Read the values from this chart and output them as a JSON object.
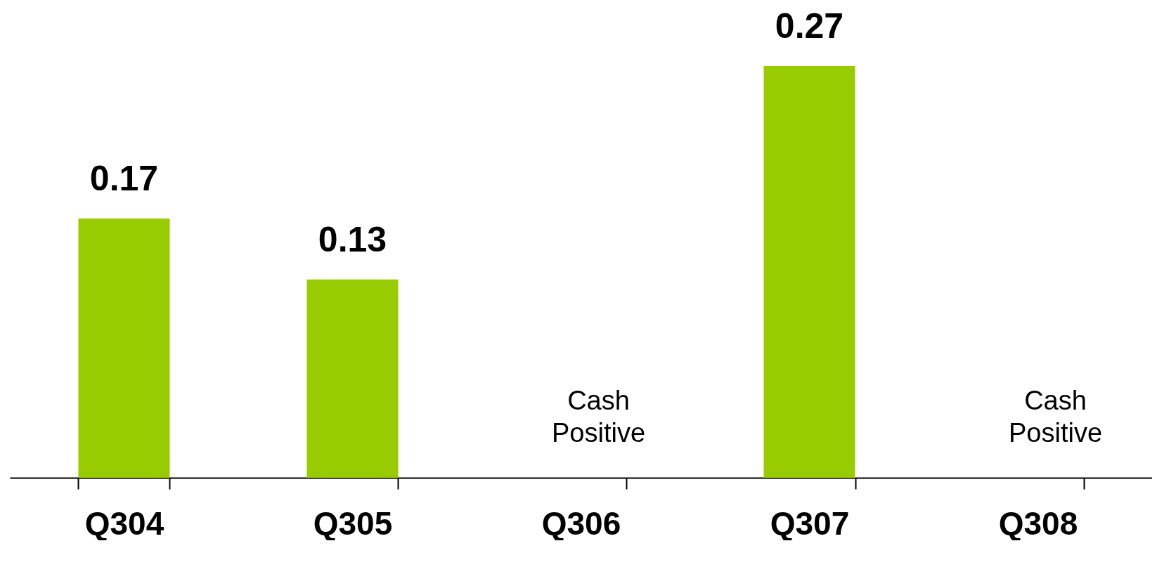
{
  "chart_data": {
    "type": "bar",
    "categories": [
      "Q304",
      "Q305",
      "Q306",
      "Q307",
      "Q308"
    ],
    "values": [
      0.17,
      0.13,
      null,
      0.27,
      null
    ],
    "color": "#99cc00",
    "data_labels": true,
    "grid": false,
    "annotations": [
      "Cash Positive",
      "Cash Positive"
    ]
  }
}
